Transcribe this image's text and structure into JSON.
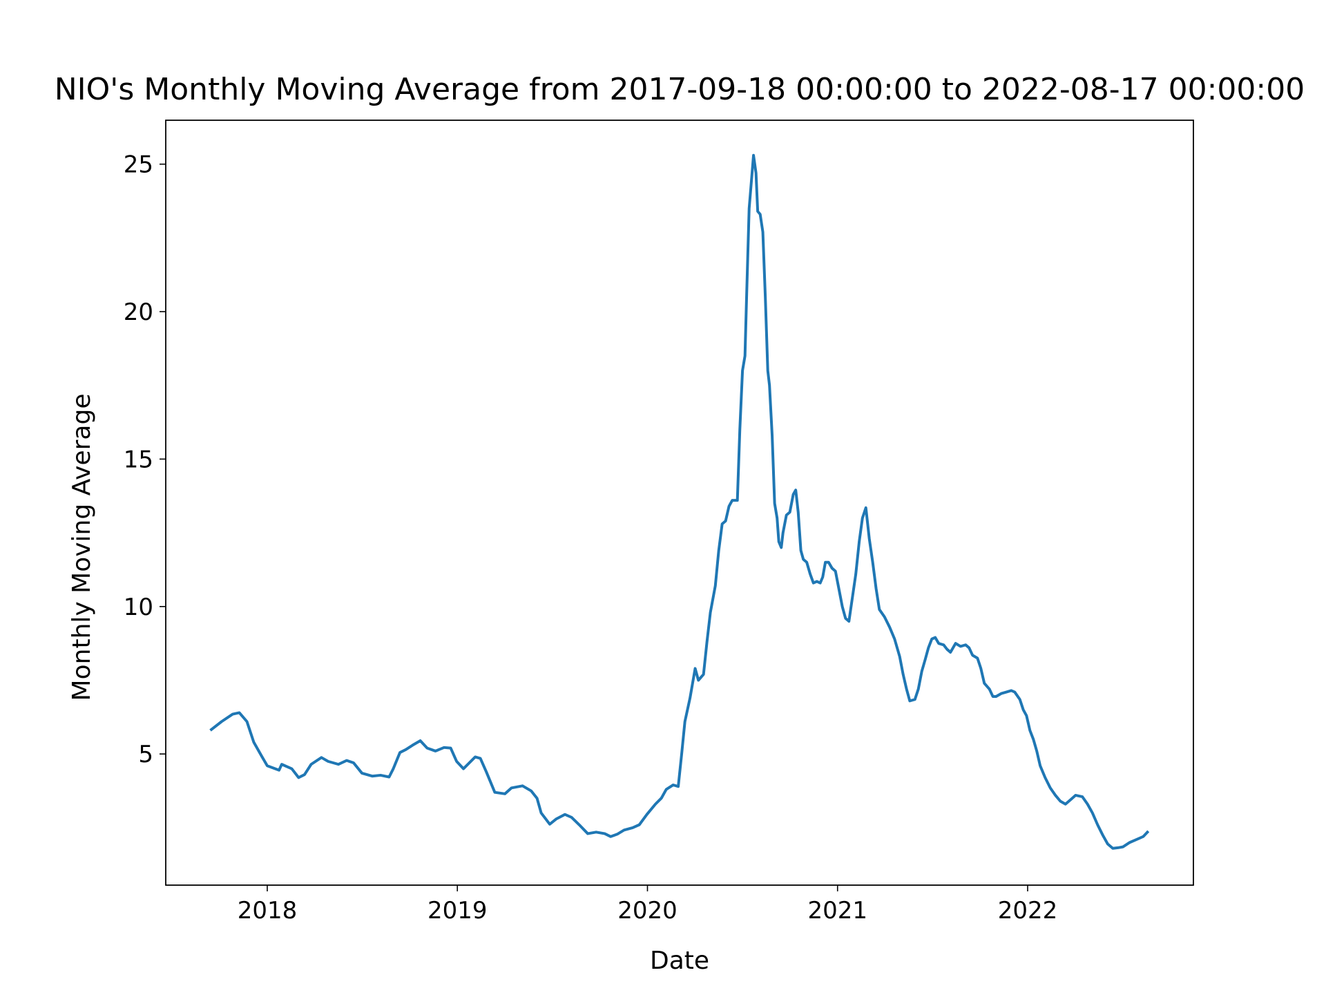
{
  "chart_data": {
    "type": "line",
    "title": "NIO's Monthly Moving Average from 2017-09-18 00:00:00 to 2022-08-17 00:00:00",
    "xlabel": "Date",
    "ylabel": "Monthly Moving Average",
    "xlim": [
      2017.466,
      2022.872
    ],
    "ylim": [
      0.553,
      26.49
    ],
    "xticks": [
      2018,
      2019,
      2020,
      2021,
      2022
    ],
    "yticks": [
      5,
      10,
      15,
      20,
      25
    ],
    "grid": false,
    "series": [
      {
        "name": "Monthly Moving Average",
        "color": "#1f77b4",
        "x": [
          2017.706,
          2017.76,
          2017.818,
          2017.853,
          2017.893,
          2017.929,
          2017.973,
          2018.0,
          2018.062,
          2018.076,
          2018.129,
          2018.165,
          2018.196,
          2018.231,
          2018.285,
          2018.32,
          2018.374,
          2018.418,
          2018.454,
          2018.498,
          2018.552,
          2018.596,
          2018.641,
          2018.663,
          2018.698,
          2018.729,
          2018.765,
          2018.805,
          2018.841,
          2018.885,
          2018.93,
          2018.965,
          2018.996,
          2019.032,
          2019.063,
          2019.094,
          2019.121,
          2019.152,
          2019.197,
          2019.25,
          2019.285,
          2019.343,
          2019.388,
          2019.419,
          2019.441,
          2019.486,
          2019.521,
          2019.566,
          2019.601,
          2019.641,
          2019.686,
          2019.73,
          2019.775,
          2019.806,
          2019.841,
          2019.877,
          2019.922,
          2019.957,
          2019.997,
          2020.042,
          2020.073,
          2020.099,
          2020.135,
          2020.162,
          2020.18,
          2020.197,
          2020.224,
          2020.251,
          2020.268,
          2020.295,
          2020.313,
          2020.331,
          2020.357,
          2020.375,
          2020.393,
          2020.411,
          2020.429,
          2020.446,
          2020.473,
          2020.486,
          2020.5,
          2020.513,
          2020.522,
          2020.535,
          2020.544,
          2020.558,
          2020.571,
          2020.58,
          2020.593,
          2020.607,
          2020.62,
          2020.633,
          2020.642,
          2020.656,
          2020.669,
          2020.682,
          2020.691,
          2020.704,
          2020.713,
          2020.731,
          2020.749,
          2020.767,
          2020.78,
          2020.793,
          2020.807,
          2020.82,
          2020.838,
          2020.856,
          2020.873,
          2020.891,
          2020.909,
          2020.922,
          2020.936,
          2020.953,
          2020.971,
          2020.989,
          2021.007,
          2021.025,
          2021.042,
          2021.06,
          2021.078,
          2021.096,
          2021.114,
          2021.131,
          2021.149,
          2021.167,
          2021.185,
          2021.203,
          2021.22,
          2021.247,
          2021.274,
          2021.3,
          2021.327,
          2021.345,
          2021.363,
          2021.38,
          2021.407,
          2021.425,
          2021.443,
          2021.461,
          2021.478,
          2021.496,
          2021.514,
          2021.532,
          2021.558,
          2021.576,
          2021.594,
          2021.621,
          2021.647,
          2021.674,
          2021.692,
          2021.71,
          2021.736,
          2021.754,
          2021.772,
          2021.799,
          2021.817,
          2021.834,
          2021.861,
          2021.888,
          2021.914,
          2021.932,
          2021.959,
          2021.977,
          2021.994,
          2022.012,
          2022.03,
          2022.048,
          2022.066,
          2022.092,
          2022.119,
          2022.146,
          2022.172,
          2022.199,
          2022.226,
          2022.252,
          2022.288,
          2022.315,
          2022.341,
          2022.368,
          2022.395,
          2022.421,
          2022.448,
          2022.475,
          2022.501,
          2022.537,
          2022.573,
          2022.608,
          2022.63
        ],
        "values": [
          5.83,
          6.1,
          6.35,
          6.4,
          6.1,
          5.4,
          4.9,
          4.6,
          4.45,
          4.65,
          4.5,
          4.2,
          4.3,
          4.65,
          4.88,
          4.75,
          4.65,
          4.78,
          4.7,
          4.35,
          4.25,
          4.28,
          4.22,
          4.5,
          5.05,
          5.15,
          5.3,
          5.45,
          5.2,
          5.1,
          5.22,
          5.2,
          4.75,
          4.5,
          4.7,
          4.9,
          4.85,
          4.4,
          3.7,
          3.65,
          3.85,
          3.92,
          3.75,
          3.5,
          3.0,
          2.62,
          2.8,
          2.95,
          2.85,
          2.6,
          2.3,
          2.35,
          2.3,
          2.2,
          2.28,
          2.42,
          2.5,
          2.6,
          2.95,
          3.3,
          3.5,
          3.8,
          3.95,
          3.9,
          5.0,
          6.1,
          6.9,
          7.9,
          7.5,
          7.7,
          8.8,
          9.8,
          10.7,
          11.9,
          12.8,
          12.9,
          13.4,
          13.6,
          13.6,
          16.0,
          18.0,
          18.5,
          20.6,
          23.5,
          24.2,
          25.3,
          24.7,
          23.4,
          23.3,
          22.7,
          20.5,
          18.0,
          17.5,
          15.8,
          13.5,
          13.0,
          12.2,
          12.0,
          12.5,
          13.1,
          13.2,
          13.8,
          13.95,
          13.2,
          11.9,
          11.6,
          11.5,
          11.1,
          10.8,
          10.85,
          10.8,
          11.0,
          11.5,
          11.5,
          11.3,
          11.2,
          10.6,
          10.0,
          9.6,
          9.5,
          10.3,
          11.1,
          12.2,
          13.0,
          13.35,
          12.3,
          11.5,
          10.6,
          9.9,
          9.65,
          9.3,
          8.9,
          8.3,
          7.7,
          7.2,
          6.8,
          6.85,
          7.2,
          7.8,
          8.2,
          8.6,
          8.9,
          8.95,
          8.75,
          8.7,
          8.55,
          8.45,
          8.75,
          8.65,
          8.7,
          8.6,
          8.35,
          8.25,
          7.9,
          7.4,
          7.2,
          6.95,
          6.95,
          7.05,
          7.1,
          7.15,
          7.1,
          6.85,
          6.5,
          6.3,
          5.8,
          5.5,
          5.1,
          4.6,
          4.2,
          3.85,
          3.6,
          3.4,
          3.3,
          3.45,
          3.6,
          3.55,
          3.3,
          3.0,
          2.6,
          2.25,
          1.95,
          1.8,
          1.82,
          1.85,
          2.0,
          2.1,
          2.2,
          2.35
        ]
      }
    ]
  }
}
